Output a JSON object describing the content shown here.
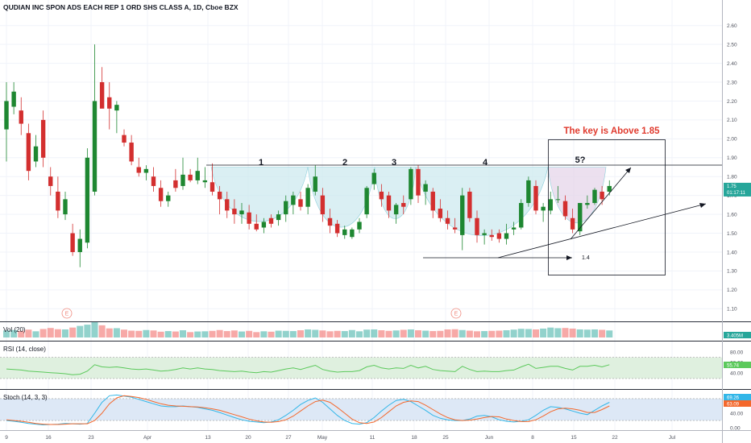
{
  "header": {
    "title": "QUDIAN INC SPON ADS EACH REP 1 ORD SHS CLASS A, 1D, Cboe BZX"
  },
  "chart_data": {
    "type": "candlestick",
    "ylim": [
      1.05,
      2.65
    ],
    "price_ticks": [
      "1.10",
      "1.20",
      "1.30",
      "1.40",
      "1.50",
      "1.60",
      "1.70",
      "1.80",
      "1.90",
      "2.00",
      "2.10",
      "2.20",
      "2.30",
      "2.40",
      "2.50",
      "2.60"
    ],
    "x_ticks": [
      "9",
      "16",
      "23",
      "Apr",
      "13",
      "20",
      "27",
      "May",
      "11",
      "18",
      "25",
      "Jun",
      "8",
      "15",
      "22",
      "Jul"
    ],
    "last_price": "1.75",
    "countdown": "01:17:11",
    "candles": [
      {
        "o": 2.05,
        "h": 2.3,
        "l": 1.88,
        "c": 2.2
      },
      {
        "o": 2.17,
        "h": 2.3,
        "l": 2.13,
        "c": 2.25
      },
      {
        "o": 2.15,
        "h": 2.22,
        "l": 2.02,
        "c": 2.08
      },
      {
        "o": 2.03,
        "h": 2.08,
        "l": 1.78,
        "c": 1.83
      },
      {
        "o": 1.88,
        "h": 2.02,
        "l": 1.85,
        "c": 1.96
      },
      {
        "o": 2.1,
        "h": 2.15,
        "l": 1.85,
        "c": 1.9
      },
      {
        "o": 1.8,
        "h": 1.85,
        "l": 1.7,
        "c": 1.75
      },
      {
        "o": 1.72,
        "h": 1.8,
        "l": 1.58,
        "c": 1.62
      },
      {
        "o": 1.6,
        "h": 1.72,
        "l": 1.57,
        "c": 1.68
      },
      {
        "o": 1.5,
        "h": 1.55,
        "l": 1.38,
        "c": 1.4
      },
      {
        "o": 1.4,
        "h": 1.52,
        "l": 1.32,
        "c": 1.47
      },
      {
        "o": 1.45,
        "h": 1.95,
        "l": 1.42,
        "c": 1.9
      },
      {
        "o": 1.72,
        "h": 2.5,
        "l": 1.7,
        "c": 2.2
      },
      {
        "o": 2.3,
        "h": 2.38,
        "l": 2.17,
        "c": 2.16
      },
      {
        "o": 2.22,
        "h": 2.3,
        "l": 2.05,
        "c": 2.16
      },
      {
        "o": 2.15,
        "h": 2.2,
        "l": 2.03,
        "c": 2.18
      },
      {
        "o": 2.02,
        "h": 2.05,
        "l": 1.96,
        "c": 1.98
      },
      {
        "o": 1.98,
        "h": 2.02,
        "l": 1.86,
        "c": 1.88
      },
      {
        "o": 1.85,
        "h": 1.9,
        "l": 1.8,
        "c": 1.82
      },
      {
        "o": 1.82,
        "h": 1.86,
        "l": 1.78,
        "c": 1.84
      },
      {
        "o": 1.8,
        "h": 1.85,
        "l": 1.72,
        "c": 1.75
      },
      {
        "o": 1.74,
        "h": 1.78,
        "l": 1.64,
        "c": 1.67
      },
      {
        "o": 1.67,
        "h": 1.72,
        "l": 1.64,
        "c": 1.7
      },
      {
        "o": 1.78,
        "h": 1.84,
        "l": 1.72,
        "c": 1.74
      },
      {
        "o": 1.75,
        "h": 1.9,
        "l": 1.73,
        "c": 1.81
      },
      {
        "o": 1.81,
        "h": 1.84,
        "l": 1.77,
        "c": 1.78
      },
      {
        "o": 1.78,
        "h": 1.9,
        "l": 1.76,
        "c": 1.83
      },
      {
        "o": 1.77,
        "h": 1.85,
        "l": 1.74,
        "c": 1.78
      },
      {
        "o": 1.77,
        "h": 1.87,
        "l": 1.7,
        "c": 1.72
      },
      {
        "o": 1.72,
        "h": 1.75,
        "l": 1.6,
        "c": 1.68
      },
      {
        "o": 1.68,
        "h": 1.72,
        "l": 1.58,
        "c": 1.62
      },
      {
        "o": 1.63,
        "h": 1.68,
        "l": 1.55,
        "c": 1.6
      },
      {
        "o": 1.6,
        "h": 1.66,
        "l": 1.55,
        "c": 1.62
      },
      {
        "o": 1.61,
        "h": 1.65,
        "l": 1.52,
        "c": 1.55
      },
      {
        "o": 1.55,
        "h": 1.6,
        "l": 1.51,
        "c": 1.52
      },
      {
        "o": 1.53,
        "h": 1.58,
        "l": 1.5,
        "c": 1.56
      },
      {
        "o": 1.58,
        "h": 1.6,
        "l": 1.53,
        "c": 1.55
      },
      {
        "o": 1.57,
        "h": 1.62,
        "l": 1.54,
        "c": 1.6
      },
      {
        "o": 1.6,
        "h": 1.7,
        "l": 1.56,
        "c": 1.67
      },
      {
        "o": 1.65,
        "h": 1.72,
        "l": 1.6,
        "c": 1.7
      },
      {
        "o": 1.68,
        "h": 1.72,
        "l": 1.62,
        "c": 1.64
      },
      {
        "o": 1.64,
        "h": 1.76,
        "l": 1.6,
        "c": 1.74
      },
      {
        "o": 1.72,
        "h": 1.86,
        "l": 1.7,
        "c": 1.8
      },
      {
        "o": 1.7,
        "h": 1.74,
        "l": 1.56,
        "c": 1.6
      },
      {
        "o": 1.58,
        "h": 1.63,
        "l": 1.5,
        "c": 1.54
      },
      {
        "o": 1.55,
        "h": 1.57,
        "l": 1.48,
        "c": 1.5
      },
      {
        "o": 1.49,
        "h": 1.54,
        "l": 1.47,
        "c": 1.52
      },
      {
        "o": 1.48,
        "h": 1.53,
        "l": 1.47,
        "c": 1.52
      },
      {
        "o": 1.52,
        "h": 1.58,
        "l": 1.5,
        "c": 1.56
      },
      {
        "o": 1.6,
        "h": 1.75,
        "l": 1.58,
        "c": 1.74
      },
      {
        "o": 1.76,
        "h": 1.84,
        "l": 1.73,
        "c": 1.82
      },
      {
        "o": 1.72,
        "h": 1.76,
        "l": 1.64,
        "c": 1.68
      },
      {
        "o": 1.7,
        "h": 1.72,
        "l": 1.58,
        "c": 1.62
      },
      {
        "o": 1.6,
        "h": 1.66,
        "l": 1.55,
        "c": 1.65
      },
      {
        "o": 1.66,
        "h": 1.7,
        "l": 1.6,
        "c": 1.64
      },
      {
        "o": 1.68,
        "h": 1.85,
        "l": 1.65,
        "c": 1.84
      },
      {
        "o": 1.84,
        "h": 1.86,
        "l": 1.66,
        "c": 1.7
      },
      {
        "o": 1.72,
        "h": 1.78,
        "l": 1.65,
        "c": 1.76
      },
      {
        "o": 1.72,
        "h": 1.74,
        "l": 1.58,
        "c": 1.62
      },
      {
        "o": 1.63,
        "h": 1.68,
        "l": 1.56,
        "c": 1.58
      },
      {
        "o": 1.58,
        "h": 1.62,
        "l": 1.52,
        "c": 1.55
      },
      {
        "o": 1.53,
        "h": 1.58,
        "l": 1.5,
        "c": 1.52
      },
      {
        "o": 1.49,
        "h": 1.74,
        "l": 1.41,
        "c": 1.7
      },
      {
        "o": 1.72,
        "h": 1.74,
        "l": 1.56,
        "c": 1.58
      },
      {
        "o": 1.58,
        "h": 1.62,
        "l": 1.45,
        "c": 1.49
      },
      {
        "o": 1.49,
        "h": 1.52,
        "l": 1.44,
        "c": 1.5
      },
      {
        "o": 1.49,
        "h": 1.52,
        "l": 1.46,
        "c": 1.48
      },
      {
        "o": 1.5,
        "h": 1.52,
        "l": 1.45,
        "c": 1.47
      },
      {
        "o": 1.47,
        "h": 1.55,
        "l": 1.44,
        "c": 1.5
      },
      {
        "o": 1.52,
        "h": 1.56,
        "l": 1.49,
        "c": 1.53
      },
      {
        "o": 1.53,
        "h": 1.68,
        "l": 1.52,
        "c": 1.66
      },
      {
        "o": 1.66,
        "h": 1.8,
        "l": 1.64,
        "c": 1.78
      },
      {
        "o": 1.75,
        "h": 1.78,
        "l": 1.6,
        "c": 1.62
      },
      {
        "o": 1.62,
        "h": 1.66,
        "l": 1.56,
        "c": 1.64
      },
      {
        "o": 1.62,
        "h": 1.72,
        "l": 1.6,
        "c": 1.68
      },
      {
        "o": 1.68,
        "h": 1.75,
        "l": 1.66,
        "c": 1.68
      },
      {
        "o": 1.67,
        "h": 1.7,
        "l": 1.57,
        "c": 1.59
      },
      {
        "o": 1.58,
        "h": 1.63,
        "l": 1.5,
        "c": 1.52
      },
      {
        "o": 1.51,
        "h": 1.66,
        "l": 1.49,
        "c": 1.66
      },
      {
        "o": 1.65,
        "h": 1.7,
        "l": 1.63,
        "c": 1.66
      },
      {
        "o": 1.66,
        "h": 1.74,
        "l": 1.65,
        "c": 1.73
      },
      {
        "o": 1.72,
        "h": 1.75,
        "l": 1.65,
        "c": 1.68
      },
      {
        "o": 1.72,
        "h": 1.78,
        "l": 1.7,
        "c": 1.75
      }
    ],
    "volume": {
      "label": "Vol (20)",
      "last_value_text": "3.405M",
      "values": [
        3.4,
        3.6,
        3.2,
        3.8,
        3.0,
        4.1,
        4.6,
        4.0,
        3.9,
        4.8,
        5.6,
        6.2,
        7.4,
        5.9,
        4.4,
        4.5,
        3.8,
        3.3,
        3.2,
        3.6,
        3.4,
        2.8,
        3.1,
        2.9,
        3.5,
        2.6,
        2.9,
        3.0,
        3.2,
        3.6,
        3.1,
        3.4,
        2.9,
        3.2,
        2.6,
        3.0,
        2.8,
        3.3,
        3.2,
        3.1,
        3.5,
        3.9,
        3.7,
        3.4,
        3.0,
        3.2,
        3.1,
        3.6,
        3.0,
        3.8,
        3.9,
        3.5,
        3.2,
        3.4,
        3.7,
        3.9,
        3.5,
        3.3,
        3.1,
        3.2,
        3.9,
        4.0,
        3.6,
        3.3,
        3.0,
        3.1,
        3.2,
        3.3,
        3.5,
        3.8,
        4.2,
        4.1,
        3.9,
        4.3,
        4.8,
        4.5,
        4.6,
        4.3,
        3.9,
        3.8,
        3.9,
        3.7,
        3.4
      ]
    },
    "rsi": {
      "label": "RSI (14, close)",
      "last_value": "55.74",
      "ticks": [
        "80.00",
        "60.00",
        "40.00"
      ],
      "upper": 70,
      "lower": 30,
      "values": [
        48,
        47,
        46,
        44,
        43,
        42,
        41,
        40,
        39,
        37,
        38,
        44,
        56,
        52,
        51,
        52,
        50,
        48,
        47,
        48,
        46,
        44,
        45,
        47,
        50,
        48,
        50,
        48,
        47,
        45,
        44,
        43,
        44,
        42,
        41,
        43,
        42,
        45,
        48,
        50,
        47,
        51,
        55,
        47,
        44,
        42,
        43,
        43,
        45,
        52,
        55,
        50,
        48,
        50,
        49,
        55,
        50,
        53,
        47,
        45,
        44,
        43,
        53,
        47,
        43,
        44,
        43,
        43,
        45,
        46,
        52,
        57,
        49,
        51,
        53,
        53,
        49,
        46,
        53,
        53,
        55,
        52,
        56
      ]
    },
    "stoch": {
      "label": "Stoch (14, 3, 3)",
      "k_value": "69.26",
      "d_value": "63.09",
      "ticks": [
        "80.00",
        "40.00",
        "0.00"
      ],
      "upper": 80,
      "lower": 20,
      "k": [
        20,
        18,
        15,
        12,
        10,
        8,
        9,
        10,
        12,
        11,
        10,
        12,
        40,
        70,
        88,
        90,
        87,
        84,
        78,
        72,
        66,
        60,
        58,
        58,
        60,
        58,
        56,
        52,
        48,
        42,
        35,
        28,
        22,
        18,
        16,
        14,
        16,
        22,
        34,
        48,
        64,
        75,
        82,
        70,
        52,
        34,
        20,
        12,
        10,
        14,
        28,
        46,
        62,
        75,
        78,
        72,
        60,
        48,
        34,
        26,
        22,
        20,
        20,
        24,
        32,
        34,
        30,
        22,
        18,
        16,
        18,
        22,
        34,
        48,
        58,
        56,
        52,
        46,
        40,
        36,
        48,
        60,
        70
      ],
      "d": [
        22,
        20,
        18,
        15,
        12,
        10,
        9,
        9,
        10,
        11,
        11,
        11,
        20,
        40,
        66,
        82,
        88,
        86,
        83,
        78,
        72,
        66,
        62,
        60,
        59,
        58,
        57,
        55,
        52,
        48,
        42,
        36,
        30,
        24,
        19,
        16,
        15,
        17,
        22,
        32,
        46,
        60,
        72,
        76,
        70,
        56,
        40,
        24,
        14,
        12,
        16,
        28,
        44,
        60,
        70,
        74,
        72,
        62,
        50,
        38,
        28,
        22,
        20,
        21,
        24,
        28,
        31,
        30,
        24,
        20,
        17,
        17,
        22,
        32,
        44,
        52,
        54,
        52,
        48,
        42,
        42,
        50,
        60
      ]
    },
    "annotations": {
      "labels": [
        "1",
        "2",
        "3",
        "4",
        "5?"
      ],
      "key_text": "The key is Above 1.85",
      "target_label": "1.4",
      "earnings_marker": "E"
    },
    "colors": {
      "up": "#26a69a",
      "down": "#ef5350",
      "candle_up": "#1e8731",
      "candle_down": "#d32f2f",
      "cup_fill": "#cde9ef",
      "cup_fill_pink": "#e6d5ea",
      "rsi_band": "#dff0df",
      "stoch_band": "#dde8f6",
      "stoch_k": "#31b6e8",
      "stoch_d": "#f4682c",
      "rsi_line": "#5cc95c"
    }
  }
}
